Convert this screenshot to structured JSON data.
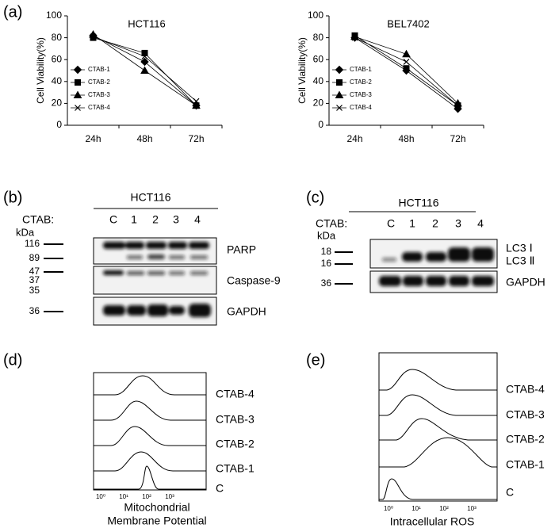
{
  "chart_data": [
    {
      "type": "line",
      "title": "HCT116",
      "y_label": "Cell Viability(%)",
      "categories": [
        "24h",
        "48h",
        "72h"
      ],
      "ylim": [
        0,
        100
      ],
      "yticks": [
        0,
        20,
        40,
        60,
        80,
        100
      ],
      "series": [
        {
          "name": "CTAB-1",
          "color": "#000000",
          "marker": "diamond",
          "values": [
            82,
            58,
            18
          ]
        },
        {
          "name": "CTAB-2",
          "color": "#000000",
          "marker": "square",
          "values": [
            80,
            66,
            18
          ]
        },
        {
          "name": "CTAB-3",
          "color": "#000000",
          "marker": "triangle",
          "values": [
            83,
            50,
            18
          ]
        },
        {
          "name": "CTAB-4",
          "color": "#000000",
          "marker": "x",
          "values": [
            81,
            63,
            22
          ]
        }
      ]
    },
    {
      "type": "line",
      "title": "BEL7402",
      "y_label": "Cell Viability(%)",
      "categories": [
        "24h",
        "48h",
        "72h"
      ],
      "ylim": [
        0,
        100
      ],
      "yticks": [
        0,
        20,
        40,
        60,
        80,
        100
      ],
      "series": [
        {
          "name": "CTAB-1",
          "color": "#000000",
          "marker": "diamond",
          "values": [
            80,
            50,
            15
          ]
        },
        {
          "name": "CTAB-2",
          "color": "#000000",
          "marker": "square",
          "values": [
            82,
            52,
            18
          ]
        },
        {
          "name": "CTAB-3",
          "color": "#000000",
          "marker": "triangle",
          "values": [
            81,
            65,
            20
          ]
        },
        {
          "name": "CTAB-4",
          "color": "#000000",
          "marker": "x",
          "values": [
            80,
            58,
            18
          ]
        }
      ]
    }
  ],
  "panel_labels": [
    "(a)",
    "(b)",
    "(c)",
    "(d)",
    "(e)"
  ],
  "blot_b": {
    "title": "HCT116",
    "lanes_label": "CTAB:",
    "lanes": [
      "C",
      "1",
      "2",
      "3",
      "4"
    ],
    "unit": "kDa",
    "markers": [
      116,
      89,
      47,
      37,
      35,
      36
    ],
    "proteins": [
      "PARP",
      "Caspase-9",
      "GAPDH"
    ]
  },
  "blot_c": {
    "title": "HCT116",
    "lanes_label": "CTAB:",
    "lanes": [
      "C",
      "1",
      "2",
      "3",
      "4"
    ],
    "unit": "kDa",
    "markers": [
      18,
      16,
      36
    ],
    "proteins": [
      "LC3 Ⅰ",
      "LC3 Ⅱ",
      "GAPDH"
    ]
  },
  "flow_d": {
    "samples": [
      "CTAB-4",
      "CTAB-3",
      "CTAB-2",
      "CTAB-1",
      "C"
    ],
    "x_label": [
      "Mitochondrial",
      "Membrane Potential"
    ],
    "xticks": [
      "10⁰",
      "10¹",
      "10²",
      "10³"
    ]
  },
  "flow_e": {
    "samples": [
      "CTAB-4",
      "CTAB-3",
      "CTAB-2",
      "CTAB-1",
      "C"
    ],
    "x_label": "Intracellular ROS",
    "xticks": [
      "10⁰",
      "10¹",
      "10²",
      "10³"
    ]
  }
}
